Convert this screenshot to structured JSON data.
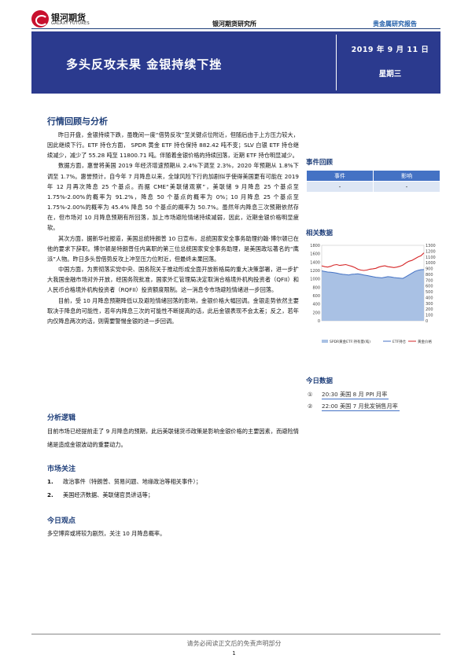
{
  "header": {
    "brand_cn": "银河期货",
    "brand_en": "GALAXY FUTURES",
    "institute": "银河期货研究所",
    "report_type": "贵金属研究报告"
  },
  "banner": {
    "title": "多头反攻未果  金银持续下挫",
    "date": "2019 年 9 月 11 日",
    "weekday": "星期三"
  },
  "review": {
    "title": "行情回顾与分析",
    "paragraphs": [
      "昨日开盘，金银持续下跌，虽晚间一度“借势反攻”至关键点位附近，但随后由于上方压力较大，因此继续下行。ETF 持仓方面， SPDR 黄金 ETF 持仓保持 882.42 吨不变；SLV 白银 ETF 持仓继续减少，减少了 55.28 吨至 11800.71 吨。伴随着金银价格的持续回落，近期 ETF 持仓明显减少。",
      "数据方面，惠誉将美国 2019 年经济增速预期从 2.4%下调至 2.3%，2020 年预期从 1.8%下调至 1.7%。惠誉预计，自今年 7 月降息以来，全球风险下行的加剧似乎使得美国更有可能在 2019 年 12 月再次降息 25 个基点。而据 CME“美联储观察”，美联储 9 月降息 25 个基点至 1.75%-2.00%的概率为 91.2%，降息 50 个基点的概率为 0%；10 月降息 25 个基点至 1.75%-2.00%的概率为 45.4% 降息 50 个基点的概率为 50.7%。虽然年内降息三次预期依然存在，但市场对 10 月降息预期有所回落，加上市场避险情绪持续减弱，因此，近期金银价格明显疲软。",
      "其次方面，据新华社报道，美国总统特朗普 10 日宣布，总统国家安全事务助理约翰·博尔顿已在他的要求下辞职。博尔顿是特朗普任内离职的第三位总统国家安全事务助理，是美国政坛著名的“鹰派”人物。昨日多头曾借势反攻上冲至压力位附近，但最终未果回落。",
      "中国方面，为贯彻落实党中央、国务院关于推动形成全面开放新格局的重大决策部署，进一步扩大我国金融市场对外开放，经国务院批准，国家外汇管理局决定取消合格境外机构投资者（QFII）和人民币合格境外机构投资者（RQFII）投资额度限制。这一消息令市场避险情绪进一步回落。",
      "目前，受 10 月降息预期降低以及避险情绪回落的影响，金银价格大幅回调。金银走势依然主要取决于降息的可能性，若年内降息三次的可能性不断提高的话，此后金银表现不会太差；反之，若年内仅降息两次的话，则需要警惕金银的进一步回调。"
    ]
  },
  "logic": {
    "title": "分析逻辑",
    "text": "目前市场已经提前走了 9 月降息的预期，此后美联储货币政策是影响金银价格的主要因素，而避险情绪是造成金银波动的重要动力。"
  },
  "focus": {
    "title": "市场关注",
    "items": [
      {
        "num": "1.",
        "text": "政治事件（特朗普、贸易问题、地缘政治等相关事件）；"
      },
      {
        "num": "2.",
        "text": "美国经济数据、美联储官员讲话等；"
      }
    ]
  },
  "view": {
    "title": "今日观点",
    "text": "多空博弈或将较为剧烈，关注 10 月降息概率。"
  },
  "events": {
    "title": "事件回顾",
    "col_event": "事件",
    "col_impact": "影响",
    "row_event": "-",
    "row_impact": "-"
  },
  "related": {
    "title": "相关数据"
  },
  "chart_data": {
    "type": "line",
    "left_axis": {
      "ylim": [
        0,
        1800
      ],
      "ticks": [
        "0",
        "200",
        "400",
        "600",
        "800",
        "1000",
        "1200",
        "1400",
        "1600",
        "1800"
      ]
    },
    "right_axis": {
      "ylim": [
        0,
        1300
      ],
      "ticks": [
        "0",
        "100",
        "200",
        "300",
        "400",
        "500",
        "600",
        "700",
        "800",
        "900",
        "1000",
        "1100",
        "1200",
        "1300"
      ]
    },
    "legend": [
      "SPDR黄金ETF:持有量(吨)",
      "ETF持仓",
      "黄金价格"
    ],
    "colors": {
      "area": "#a9c1e4",
      "etf": "#4472c4",
      "gold": "#d62728"
    },
    "etf_holdings": [
      860,
      850,
      840,
      835,
      830,
      820,
      810,
      800,
      795,
      790,
      800,
      805,
      810,
      800,
      790,
      780,
      770,
      760,
      750,
      745,
      740,
      750,
      760,
      755,
      745,
      740,
      735,
      730,
      760,
      790,
      820,
      850,
      870,
      880,
      882
    ],
    "gold_price": [
      1310,
      1290,
      1280,
      1300,
      1330,
      1340,
      1320,
      1330,
      1340,
      1320,
      1300,
      1270,
      1230,
      1210,
      1200,
      1210,
      1230,
      1240,
      1250,
      1280,
      1300,
      1310,
      1290,
      1280,
      1270,
      1280,
      1300,
      1330,
      1380,
      1420,
      1440,
      1480,
      1520,
      1550,
      1620
    ]
  },
  "today_data": {
    "title": "今日数据",
    "items": [
      {
        "num": "①",
        "text": "20:30 美国 8 月 PPI 月率"
      },
      {
        "num": "②",
        "text": "22:00 美国 7 月批发销售月率"
      }
    ]
  },
  "footer": {
    "disclaimer": "请务必阅读正文后的免责声明部分",
    "page": "1"
  }
}
